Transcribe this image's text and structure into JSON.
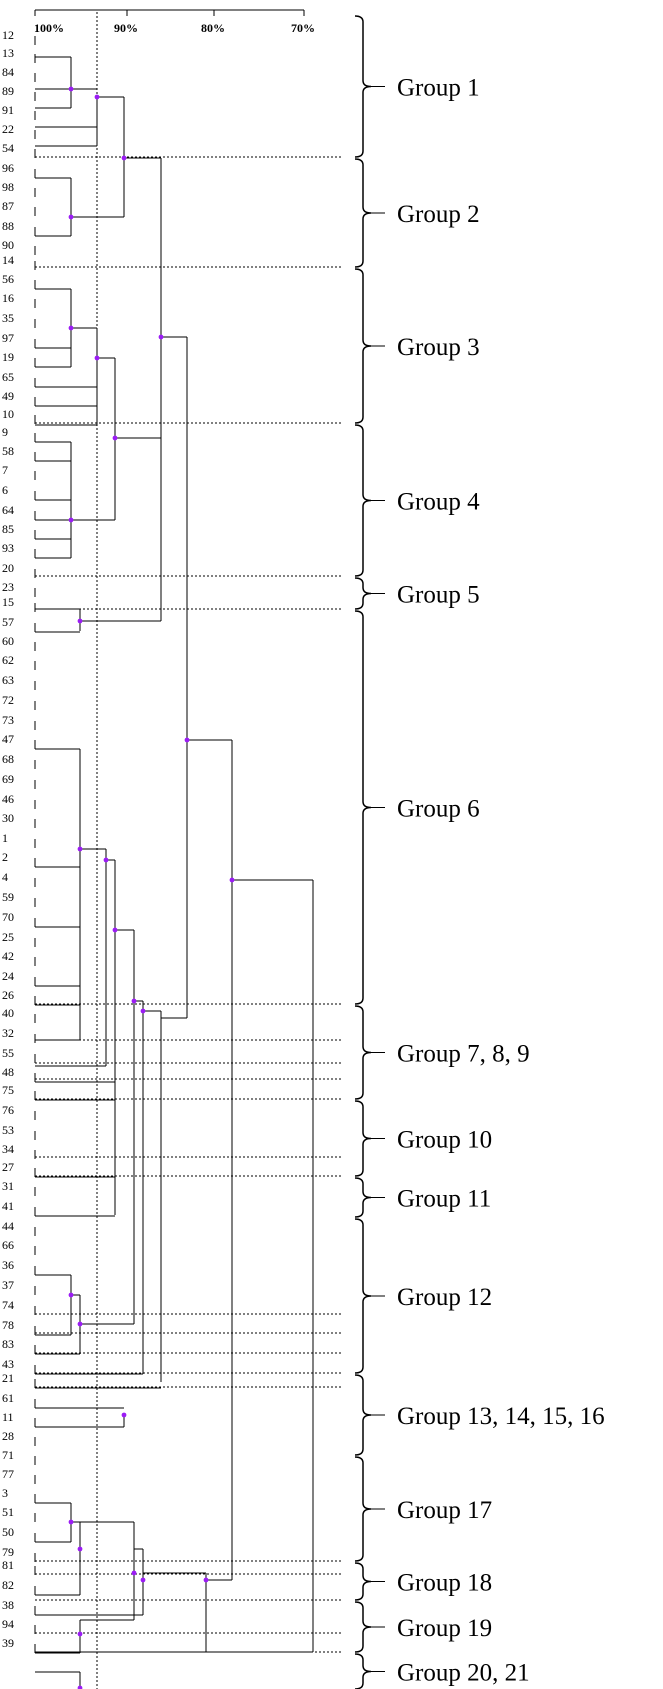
{
  "axis": {
    "ticks": [
      "100%",
      "90%",
      "80%",
      "70%"
    ]
  },
  "leaves": [
    "12",
    "13",
    "84",
    "89",
    "91",
    "22",
    "54",
    "96",
    "98",
    "87",
    "88",
    "90",
    "14",
    "56",
    "16",
    "35",
    "97",
    "19",
    "65",
    "49",
    "10",
    "9",
    "58",
    "7",
    "6",
    "64",
    "85",
    "93",
    "20",
    "23",
    "15",
    "57",
    "60",
    "62",
    "63",
    "72",
    "73",
    "47",
    "68",
    "69",
    "46",
    "30",
    "1",
    "2",
    "4",
    "59",
    "70",
    "25",
    "42",
    "24",
    "26",
    "40",
    "32",
    "55",
    "48",
    "75",
    "76",
    "53",
    "34",
    "27",
    "31",
    "41",
    "44",
    "66",
    "36",
    "37",
    "74",
    "78",
    "83",
    "43",
    "21",
    "61",
    "11",
    "28",
    "71",
    "77",
    "3",
    "51",
    "50",
    "79",
    "81",
    "82",
    "38",
    "94",
    "39"
  ],
  "groups": [
    {
      "label": "Group 1"
    },
    {
      "label": "Group 2"
    },
    {
      "label": "Group 3"
    },
    {
      "label": "Group 4"
    },
    {
      "label": "Group 5"
    },
    {
      "label": "Group 6"
    },
    {
      "label": "Group 7, 8, 9"
    },
    {
      "label": "Group 10"
    },
    {
      "label": "Group 11"
    },
    {
      "label": "Group 12"
    },
    {
      "label": "Group 13, 14, 15, 16"
    },
    {
      "label": "Group 17"
    },
    {
      "label": "Group 18"
    },
    {
      "label": "Group 19"
    },
    {
      "label": "Group 20, 21"
    }
  ],
  "colors": {
    "node": "#9b1cf5",
    "line": "#000000"
  }
}
